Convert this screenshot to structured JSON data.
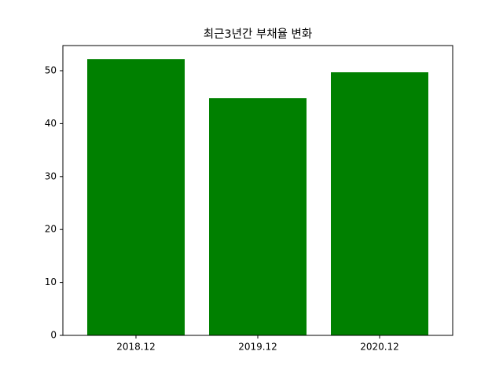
{
  "chart_data": {
    "type": "bar",
    "title": "최근3년간 부채율 변화",
    "categories": [
      "2018.12",
      "2019.12",
      "2020.12"
    ],
    "values": [
      52.2,
      44.8,
      49.7
    ],
    "color": "#008000",
    "ylim": [
      0,
      54.75
    ],
    "yticks": [
      0,
      10,
      20,
      30,
      40,
      50
    ],
    "grid": false
  }
}
